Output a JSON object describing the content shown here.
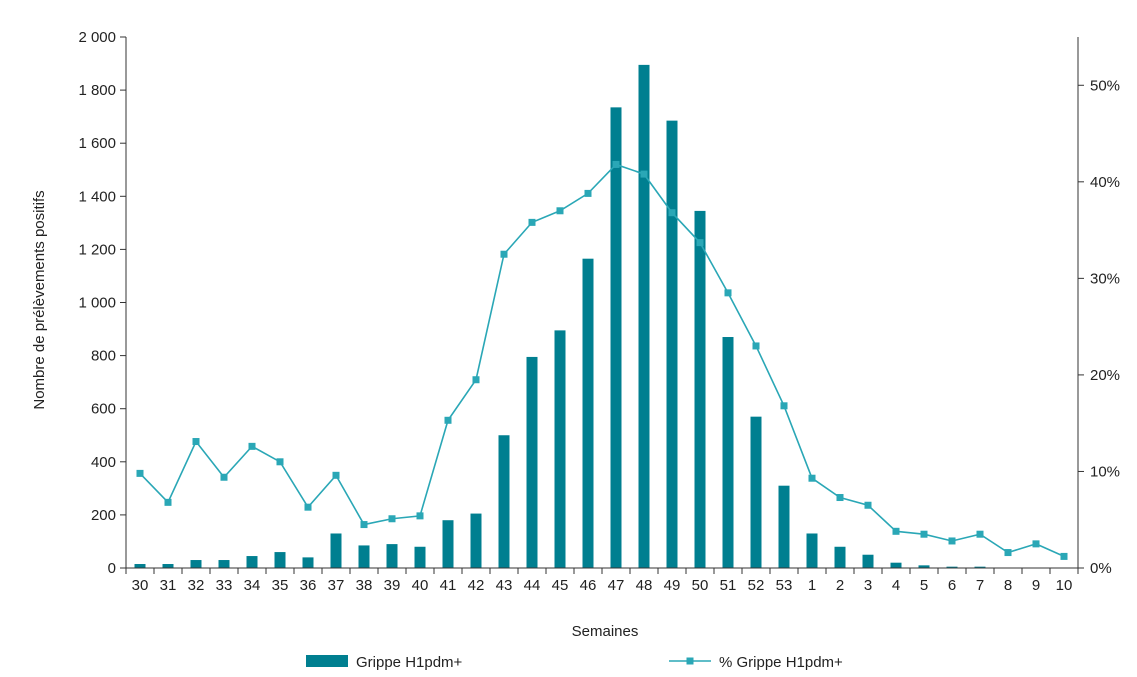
{
  "chart_data": {
    "type": "bar",
    "categories": [
      "30",
      "31",
      "32",
      "33",
      "34",
      "35",
      "36",
      "37",
      "38",
      "39",
      "40",
      "41",
      "42",
      "43",
      "44",
      "45",
      "46",
      "47",
      "48",
      "49",
      "50",
      "51",
      "52",
      "53",
      "1",
      "2",
      "3",
      "4",
      "5",
      "6",
      "7",
      "8",
      "9",
      "10"
    ],
    "series": [
      {
        "name": "Grippe H1pdm+",
        "type": "bar",
        "axis": "left",
        "values": [
          15,
          15,
          30,
          30,
          45,
          60,
          40,
          130,
          85,
          90,
          80,
          180,
          205,
          500,
          795,
          895,
          1165,
          1735,
          1895,
          1685,
          1345,
          870,
          570,
          310,
          130,
          80,
          50,
          20,
          10,
          5,
          5,
          0,
          0,
          0
        ]
      },
      {
        "name": "% Grippe H1pdm+",
        "type": "line",
        "axis": "right",
        "values": [
          9.8,
          6.8,
          13.1,
          9.4,
          12.6,
          11.0,
          6.3,
          9.6,
          4.5,
          5.1,
          5.4,
          15.3,
          19.5,
          32.5,
          35.8,
          37.0,
          38.8,
          41.8,
          40.8,
          36.8,
          33.7,
          28.5,
          23.0,
          16.8,
          9.3,
          7.3,
          6.5,
          3.8,
          3.5,
          2.8,
          3.5,
          1.6,
          2.5,
          1.2
        ]
      }
    ],
    "xlabel": "Semaines",
    "ylabel": "Nombre de prélèvements positifs",
    "ylim": [
      0,
      2000
    ],
    "yticks": [
      "0",
      "200",
      "400",
      "600",
      "800",
      "1 000",
      "1 200",
      "1 400",
      "1 600",
      "1 800",
      "2 000"
    ],
    "y2lim": [
      0,
      55
    ],
    "y2ticks": [
      "0%",
      "10%",
      "20%",
      "30%",
      "40%",
      "50%"
    ],
    "grid": false,
    "legend_position": "bottom",
    "colors": {
      "bar": "#007f90",
      "line": "#2aa7b6"
    }
  }
}
